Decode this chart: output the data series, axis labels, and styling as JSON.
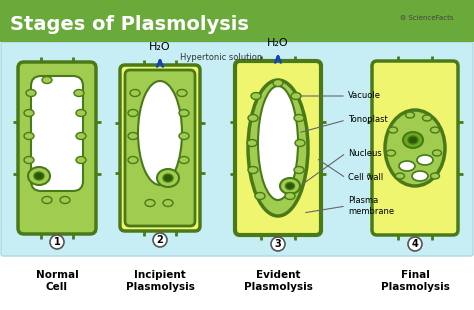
{
  "title": "Stages of Plasmolysis",
  "title_bg": "#6aaa3a",
  "title_color": "#ffffff",
  "bg_color": "#c8eef5",
  "outer_bg": "#ffffff",
  "cell_wall_color": "#8dc63f",
  "cell_wall_dark": "#5a9020",
  "cell_wall_outline": "#4a7a18",
  "vacuole_color": "#ffffff",
  "cytoplasm_color": "#a0cc50",
  "chloroplast_fill": "#8dc63f",
  "chloroplast_edge": "#4a7a18",
  "nucleus_fill": "#8dc63f",
  "nucleus_border": "#4a7a18",
  "nucleolus_fill": "#2a5a08",
  "yellow_fill": "#f0f570",
  "arrow_color": "#1144bb",
  "label_color": "#222222",
  "stage_labels": [
    "Normal\nCell",
    "Incipient\nPlasmolysis",
    "Evident\nPlasmolysis",
    "Final\nPlasmolysis"
  ],
  "stage_numbers": [
    "1",
    "2",
    "3",
    "4"
  ],
  "annotations": [
    "Vacuole",
    "Tonoplast",
    "Nucleus",
    "Cell wall",
    "Plasma\nmembrane"
  ],
  "h2o_text": "H₂O",
  "hypertonic_text": "Hypertonic solution",
  "logo_text": "⚙ ScienceFacts"
}
